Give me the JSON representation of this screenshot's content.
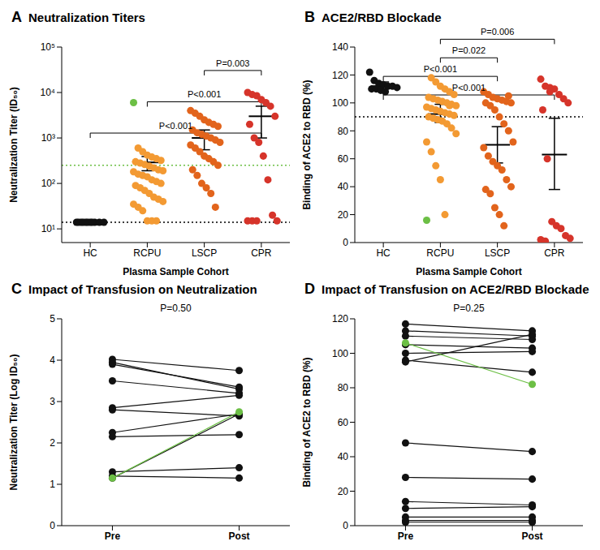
{
  "chart_data": [
    {
      "type": "scatter",
      "panel": "A",
      "title": "Neutralization Titers",
      "x_label": "Plasma Sample Cohort",
      "y_label": "Neutralization Titer (ID₅₀)",
      "log": "y",
      "ylim": [
        5,
        100000
      ],
      "yticks": [
        {
          "value": 10,
          "label": "10¹"
        },
        {
          "value": 100,
          "label": "10²"
        },
        {
          "value": 1000,
          "label": "10³"
        },
        {
          "value": 10000,
          "label": "10⁴"
        },
        {
          "value": 100000,
          "label": "10⁵"
        }
      ],
      "categories": [
        "HC",
        "RCPU",
        "LSCP",
        "CPR"
      ],
      "groups": [
        {
          "category": "HC",
          "color": "#111111",
          "values": [
            14,
            14,
            14,
            14,
            14,
            14,
            14,
            14,
            14,
            14,
            14
          ],
          "mean": null,
          "ci_low": null,
          "ci_high": null
        },
        {
          "category": "RCPU",
          "color": "#f39a33",
          "values": [
            6000,
            600,
            500,
            420,
            380,
            350,
            320,
            300,
            280,
            260,
            240,
            220,
            200,
            190,
            180,
            160,
            150,
            140,
            120,
            110,
            100,
            90,
            80,
            70,
            60,
            50,
            45,
            40,
            35,
            30,
            25,
            15,
            15,
            15
          ],
          "colors": [
            "#6cbf45",
            "#f39a33",
            "#f39a33",
            "#f39a33",
            "#f39a33",
            "#f39a33",
            "#f39a33",
            "#f39a33",
            "#f39a33",
            "#f39a33",
            "#f39a33",
            "#f39a33",
            "#f39a33",
            "#f39a33",
            "#f39a33",
            "#f39a33",
            "#f39a33",
            "#f39a33",
            "#f39a33",
            "#f39a33",
            "#f39a33",
            "#f39a33",
            "#f39a33",
            "#f39a33",
            "#f39a33",
            "#f39a33",
            "#f39a33",
            "#f39a33",
            "#f39a33",
            "#f39a33",
            "#f39a33",
            "#f39a33",
            "#f39a33",
            "#f39a33"
          ],
          "mean": 290,
          "ci_low": 190,
          "ci_high": 390
        },
        {
          "category": "LSCP",
          "color": "#e2641c",
          "values": [
            4000,
            3500,
            3000,
            2500,
            2200,
            2000,
            1800,
            1500,
            1300,
            1200,
            1100,
            1000,
            900,
            800,
            700,
            600,
            500,
            400,
            350,
            300,
            250,
            200,
            150,
            100,
            80,
            60,
            30
          ],
          "mean": 1000,
          "ci_low": 550,
          "ci_high": 1500
        },
        {
          "category": "CPR",
          "color": "#d6342a",
          "values": [
            10000,
            9000,
            8500,
            7000,
            6000,
            5000,
            3000,
            2000,
            1000,
            800,
            400,
            120,
            20,
            15,
            15,
            15,
            15
          ],
          "mean": 3000,
          "ci_low": 1000,
          "ci_high": 5000
        }
      ],
      "reference_lines": [
        {
          "value": 14,
          "color": "#000000",
          "line_style": "dotted"
        },
        {
          "value": 250,
          "color": "#6cbf45",
          "line_style": "dotted"
        }
      ],
      "comparisons": [
        {
          "from": "LSCP",
          "to": "CPR",
          "label": "P=0.003"
        },
        {
          "from": "RCPU",
          "to": "CPR",
          "label": "P<0.001"
        },
        {
          "from": "HC",
          "to": "CPR",
          "label": "P<0.001"
        }
      ]
    },
    {
      "type": "scatter",
      "panel": "B",
      "title": "ACE2/RBD Blockade",
      "x_label": "Plasma Sample Cohort",
      "y_label": "Binding of ACE2 to RBD (%)",
      "ylim": [
        0,
        140
      ],
      "yticks": [
        0,
        20,
        40,
        60,
        80,
        100,
        120,
        140
      ],
      "categories": [
        "HC",
        "RCPU",
        "LSCP",
        "CPR"
      ],
      "groups": [
        {
          "category": "HC",
          "color": "#111111",
          "values": [
            122,
            116,
            114,
            113,
            112,
            112,
            111,
            110,
            110,
            109,
            108
          ],
          "mean": 112,
          "ci_low": 110,
          "ci_high": 115
        },
        {
          "category": "RCPU",
          "color": "#f39a33",
          "values": [
            16,
            118,
            115,
            112,
            110,
            108,
            106,
            104,
            103,
            102,
            101,
            100,
            99,
            98,
            97,
            96,
            95,
            94,
            93,
            92,
            91,
            90,
            89,
            88,
            87,
            85,
            82,
            78,
            72,
            65,
            55,
            45,
            20,
            98
          ],
          "colors": [
            "#6cbf45",
            "#f39a33",
            "#f39a33",
            "#f39a33",
            "#f39a33",
            "#f39a33",
            "#f39a33",
            "#f39a33",
            "#f39a33",
            "#f39a33",
            "#f39a33",
            "#f39a33",
            "#f39a33",
            "#f39a33",
            "#f39a33",
            "#f39a33",
            "#f39a33",
            "#f39a33",
            "#f39a33",
            "#f39a33",
            "#f39a33",
            "#f39a33",
            "#f39a33",
            "#f39a33",
            "#f39a33",
            "#f39a33",
            "#f39a33",
            "#f39a33",
            "#f39a33",
            "#f39a33",
            "#f39a33",
            "#f39a33",
            "#f39a33",
            "#f39a33"
          ],
          "mean": 92,
          "ci_low": 86,
          "ci_high": 99
        },
        {
          "category": "LSCP",
          "color": "#e2641c",
          "values": [
            108,
            106,
            104,
            103,
            102,
            101,
            100,
            100,
            98,
            95,
            90,
            85,
            80,
            72,
            68,
            62,
            58,
            55,
            52,
            45,
            40,
            38,
            35,
            25,
            20,
            12,
            105
          ],
          "mean": 70,
          "ci_low": 57,
          "ci_high": 83
        },
        {
          "category": "CPR",
          "color": "#d6342a",
          "values": [
            117,
            112,
            111,
            110,
            106,
            103,
            100,
            95,
            60,
            15,
            12,
            10,
            5,
            3,
            2,
            1,
            108
          ],
          "mean": 63,
          "ci_low": 38,
          "ci_high": 89
        }
      ],
      "reference_lines": [
        {
          "value": 90,
          "color": "#000000",
          "line_style": "dotted"
        }
      ],
      "comparisons": [
        {
          "from": "RCPU",
          "to": "CPR",
          "label": "P=0.006"
        },
        {
          "from": "RCPU",
          "to": "LSCP",
          "label": "P=0.022"
        },
        {
          "from": "HC",
          "to": "LSCP",
          "label": "P<0.001"
        },
        {
          "from": "HC",
          "to": "CPR",
          "label": "P<0.001"
        }
      ]
    },
    {
      "type": "line",
      "panel": "C",
      "title": "Impact of Transfusion on Neutralization",
      "y_label": "Neutralization Titer (Log ID₅₀)",
      "annotation": "P=0.50",
      "ylim": [
        0,
        5
      ],
      "yticks": [
        0,
        1,
        2,
        3,
        4,
        5
      ],
      "categories": [
        "Pre",
        "Post"
      ],
      "marker": "circle",
      "pairs": [
        {
          "values": [
            4.02,
            3.75
          ],
          "color": "#111111"
        },
        {
          "values": [
            3.95,
            3.3
          ],
          "color": "#111111"
        },
        {
          "values": [
            3.9,
            3.35
          ],
          "color": "#111111"
        },
        {
          "values": [
            3.5,
            3.2
          ],
          "color": "#111111"
        },
        {
          "values": [
            2.85,
            3.15
          ],
          "color": "#111111"
        },
        {
          "values": [
            2.8,
            2.65
          ],
          "color": "#111111"
        },
        {
          "values": [
            2.25,
            2.7
          ],
          "color": "#111111"
        },
        {
          "values": [
            2.15,
            2.2
          ],
          "color": "#111111"
        },
        {
          "values": [
            1.3,
            1.4
          ],
          "color": "#111111"
        },
        {
          "values": [
            1.2,
            1.15
          ],
          "color": "#111111"
        },
        {
          "values": [
            1.15,
            2.7
          ],
          "color": "#111111"
        },
        {
          "values": [
            1.15,
            2.75
          ],
          "color": "#6cbf45"
        }
      ]
    },
    {
      "type": "line",
      "panel": "D",
      "title": "Impact of Transfusion on ACE2/RBD Blockade",
      "y_label": "Binding of ACE2 to RBD (%)",
      "annotation": "P=0.25",
      "ylim": [
        0,
        120
      ],
      "yticks": [
        0,
        20,
        40,
        60,
        80,
        100,
        120
      ],
      "categories": [
        "Pre",
        "Post"
      ],
      "marker": "circle",
      "pairs": [
        {
          "values": [
            117,
            113
          ],
          "color": "#111111"
        },
        {
          "values": [
            113,
            110
          ],
          "color": "#111111"
        },
        {
          "values": [
            110,
            108
          ],
          "color": "#111111"
        },
        {
          "values": [
            105,
            103
          ],
          "color": "#111111"
        },
        {
          "values": [
            100,
            101
          ],
          "color": "#111111"
        },
        {
          "values": [
            96,
            89
          ],
          "color": "#111111"
        },
        {
          "values": [
            95,
            111
          ],
          "color": "#111111"
        },
        {
          "values": [
            48,
            43
          ],
          "color": "#111111"
        },
        {
          "values": [
            28,
            27
          ],
          "color": "#111111"
        },
        {
          "values": [
            14,
            12
          ],
          "color": "#111111"
        },
        {
          "values": [
            10,
            11
          ],
          "color": "#111111"
        },
        {
          "values": [
            5,
            5
          ],
          "color": "#111111"
        },
        {
          "values": [
            3,
            3
          ],
          "color": "#111111"
        },
        {
          "values": [
            2,
            2
          ],
          "color": "#111111"
        },
        {
          "values": [
            106,
            82
          ],
          "color": "#6cbf45"
        }
      ]
    }
  ]
}
